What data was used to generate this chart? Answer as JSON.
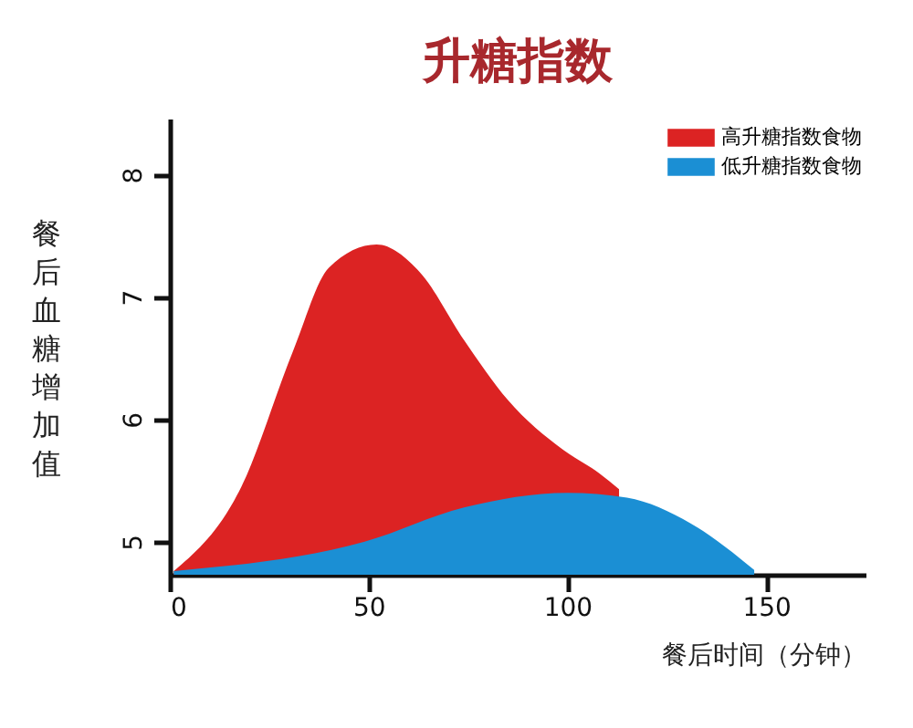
{
  "chart_data": {
    "type": "area",
    "title": "升糖指数",
    "xlabel": "餐后时间（分钟）",
    "ylabel": "餐后血糖增加值",
    "xlim": [
      0,
      175
    ],
    "xticks": [
      0,
      50,
      100,
      150
    ],
    "ylim": [
      4.73,
      8.46
    ],
    "yticks": [
      5,
      6,
      7,
      8
    ],
    "grid": false,
    "legend": "top right",
    "series": [
      {
        "name": "高升糖指数食物",
        "color": "#dc2323",
        "x": [
          1,
          18,
          31,
          40,
          52,
          63,
          74,
          85,
          99,
          108,
          113
        ],
        "values": [
          4.76,
          5.45,
          6.56,
          7.24,
          7.43,
          7.2,
          6.65,
          6.16,
          5.75,
          5.56,
          5.43
        ]
      },
      {
        "name": "低升糖指数食物",
        "color": "#1b8fd4",
        "x": [
          1,
          49,
          74,
          100,
          115,
          131,
          147
        ],
        "values": [
          4.76,
          5.0,
          5.28,
          5.4,
          5.36,
          5.15,
          4.77
        ]
      }
    ]
  }
}
